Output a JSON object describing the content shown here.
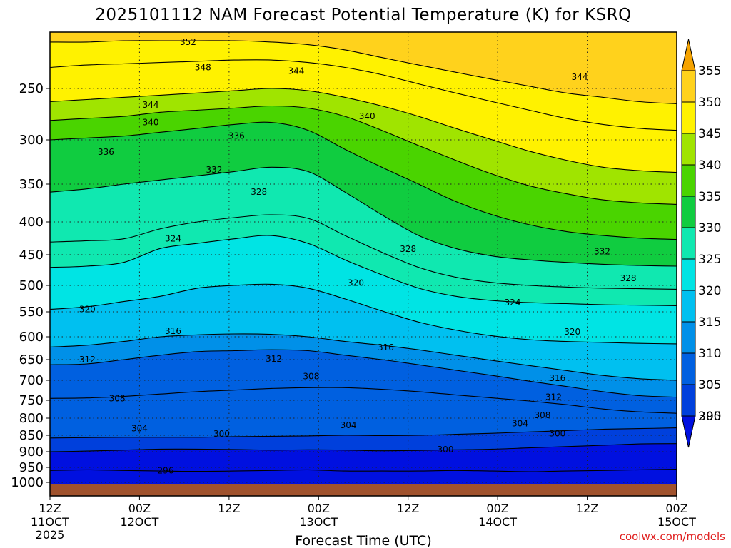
{
  "chart_data": {
    "type": "heatmap",
    "title": "2025101112 NAM Forecast Potential Temperature (K) for KSRQ",
    "xlabel": "Forecast Time (UTC)",
    "ylabel": "",
    "x_ticks": [
      {
        "hour": 0,
        "line1": "12Z",
        "line2": "11OCT",
        "line3": "2025"
      },
      {
        "hour": 12,
        "line1": "00Z",
        "line2": "12OCT",
        "line3": ""
      },
      {
        "hour": 24,
        "line1": "12Z",
        "line2": "",
        "line3": ""
      },
      {
        "hour": 36,
        "line1": "00Z",
        "line2": "13OCT",
        "line3": ""
      },
      {
        "hour": 48,
        "line1": "12Z",
        "line2": "",
        "line3": ""
      },
      {
        "hour": 60,
        "line1": "00Z",
        "line2": "14OCT",
        "line3": ""
      },
      {
        "hour": 72,
        "line1": "12Z",
        "line2": "",
        "line3": ""
      },
      {
        "hour": 84,
        "line1": "00Z",
        "line2": "15OCT",
        "line3": ""
      }
    ],
    "xlim_hours": [
      0,
      84
    ],
    "y_ticks_hpa": [
      250,
      300,
      350,
      400,
      450,
      500,
      550,
      600,
      650,
      700,
      750,
      800,
      850,
      900,
      950,
      1000
    ],
    "ylim_hpa": [
      200,
      1010
    ],
    "colorbar": {
      "levels": [
        355,
        350,
        345,
        340,
        335,
        330,
        325,
        320,
        315,
        310,
        305,
        300,
        295
      ],
      "colors": [
        "#f5a300",
        "#ffd21c",
        "#fff200",
        "#a0e400",
        "#4ad400",
        "#10cc40",
        "#10e8b0",
        "#00e4e4",
        "#00c0f0",
        "#0090e8",
        "#0060e0",
        "#0040dc",
        "#0010e0"
      ]
    },
    "contour_interval_K": 4,
    "isentropes": [
      {
        "theta": 296,
        "label_hour": 11,
        "surface_hpa": [
          960,
          958,
          960,
          962,
          963,
          962,
          960,
          958,
          962,
          962,
          962,
          960,
          962,
          964,
          962,
          960,
          958,
          956
        ]
      },
      {
        "theta": 300,
        "label_hour": 19,
        "surface_hpa": [
          900,
          898,
          895,
          892,
          892,
          893,
          895,
          894,
          895,
          897,
          896,
          894,
          892,
          888,
          884,
          880,
          876,
          875
        ]
      },
      {
        "theta": 304,
        "label_hour": 10,
        "surface_hpa": [
          858,
          857,
          856,
          856,
          856,
          854,
          853,
          852,
          850,
          851,
          850,
          847,
          844,
          840,
          836,
          832,
          830,
          828
        ]
      },
      {
        "theta": 308,
        "label_hour": 7,
        "surface_hpa": [
          745,
          744,
          740,
          734,
          728,
          724,
          720,
          718,
          718,
          722,
          728,
          736,
          744,
          752,
          762,
          774,
          782,
          786
        ]
      },
      {
        "theta": 312,
        "label_hour": 4,
        "surface_hpa": [
          662,
          660,
          650,
          640,
          632,
          630,
          628,
          630,
          640,
          650,
          662,
          675,
          688,
          702,
          715,
          728,
          738,
          742
        ]
      },
      {
        "theta": 316,
        "label_hour": 15,
        "surface_hpa": [
          622,
          618,
          610,
          600,
          596,
          594,
          595,
          600,
          610,
          618,
          628,
          640,
          652,
          664,
          676,
          688,
          696,
          700
        ]
      },
      {
        "theta": 320,
        "label_hour": 4,
        "surface_hpa": [
          545,
          540,
          530,
          520,
          505,
          500,
          498,
          505,
          525,
          548,
          570,
          586,
          598,
          606,
          610,
          612,
          614,
          615
        ]
      },
      {
        "theta": 324,
        "label_hour": 15,
        "surface_hpa": [
          470,
          468,
          462,
          440,
          432,
          425,
          420,
          432,
          458,
          482,
          505,
          520,
          528,
          532,
          534,
          536,
          537,
          538
        ]
      },
      {
        "theta": 328,
        "label_hour": 26,
        "surface_hpa": [
          430,
          428,
          425,
          410,
          400,
          394,
          390,
          395,
          420,
          446,
          470,
          486,
          495,
          500,
          503,
          505,
          506,
          507
        ]
      },
      {
        "theta": 332,
        "label_hour": 21,
        "surface_hpa": [
          360,
          356,
          350,
          345,
          340,
          335,
          330,
          335,
          360,
          390,
          420,
          440,
          452,
          458,
          462,
          465,
          467,
          468
        ]
      },
      {
        "theta": 336,
        "label_hour": 7,
        "surface_hpa": [
          300,
          298,
          296,
          292,
          288,
          284,
          282,
          290,
          310,
          330,
          350,
          372,
          390,
          404,
          414,
          420,
          424,
          426
        ]
      },
      {
        "theta": 340,
        "label_hour": 12,
        "surface_hpa": [
          280,
          278,
          276,
          272,
          270,
          268,
          266,
          268,
          276,
          290,
          306,
          322,
          338,
          352,
          362,
          370,
          374,
          376
        ]
      },
      {
        "theta": 344,
        "label_hour": 13,
        "surface_hpa": [
          262,
          260,
          258,
          256,
          254,
          252,
          250,
          252,
          258,
          266,
          276,
          288,
          300,
          312,
          322,
          330,
          334,
          336
        ]
      },
      {
        "theta": 348,
        "label_hour": 20,
        "surface_hpa": [
          232,
          230,
          229,
          228,
          227,
          226,
          226,
          228,
          232,
          238,
          246,
          254,
          262,
          270,
          278,
          284,
          288,
          290
        ]
      },
      {
        "theta": 352,
        "label_hour": 18,
        "surface_hpa": [
          212,
          212,
          211,
          211,
          211,
          211,
          212,
          214,
          218,
          224,
          230,
          236,
          242,
          248,
          254,
          258,
          262,
          264
        ]
      }
    ],
    "label_positions": [
      {
        "text": "352",
        "hour": 18.5,
        "hpa": 212
      },
      {
        "text": "348",
        "hour": 20.5,
        "hpa": 232
      },
      {
        "text": "344",
        "hour": 33,
        "hpa": 235
      },
      {
        "text": "344",
        "hour": 71,
        "hpa": 240
      },
      {
        "text": "344",
        "hour": 13.5,
        "hpa": 265
      },
      {
        "text": "340",
        "hour": 42.5,
        "hpa": 276
      },
      {
        "text": "340",
        "hour": 13.5,
        "hpa": 282
      },
      {
        "text": "336",
        "hour": 25,
        "hpa": 296
      },
      {
        "text": "336",
        "hour": 7.5,
        "hpa": 313
      },
      {
        "text": "332",
        "hour": 22,
        "hpa": 333
      },
      {
        "text": "328",
        "hour": 28,
        "hpa": 360
      },
      {
        "text": "324",
        "hour": 16.5,
        "hpa": 425
      },
      {
        "text": "328",
        "hour": 48,
        "hpa": 441
      },
      {
        "text": "332",
        "hour": 74,
        "hpa": 445
      },
      {
        "text": "328",
        "hour": 77.5,
        "hpa": 488
      },
      {
        "text": "320",
        "hour": 41,
        "hpa": 496
      },
      {
        "text": "324",
        "hour": 62,
        "hpa": 532
      },
      {
        "text": "320",
        "hour": 5,
        "hpa": 545
      },
      {
        "text": "316",
        "hour": 16.5,
        "hpa": 588
      },
      {
        "text": "320",
        "hour": 70,
        "hpa": 590
      },
      {
        "text": "316",
        "hour": 45,
        "hpa": 623
      },
      {
        "text": "312",
        "hour": 5,
        "hpa": 650
      },
      {
        "text": "312",
        "hour": 30,
        "hpa": 648
      },
      {
        "text": "308",
        "hour": 35,
        "hpa": 690
      },
      {
        "text": "316",
        "hour": 68,
        "hpa": 695
      },
      {
        "text": "308",
        "hour": 9,
        "hpa": 745
      },
      {
        "text": "312",
        "hour": 67.5,
        "hpa": 742
      },
      {
        "text": "308",
        "hour": 66,
        "hpa": 792
      },
      {
        "text": "304",
        "hour": 12,
        "hpa": 830
      },
      {
        "text": "304",
        "hour": 40,
        "hpa": 820
      },
      {
        "text": "304",
        "hour": 63,
        "hpa": 815
      },
      {
        "text": "300",
        "hour": 23,
        "hpa": 846
      },
      {
        "text": "300",
        "hour": 68,
        "hpa": 845
      },
      {
        "text": "300",
        "hour": 53,
        "hpa": 893
      },
      {
        "text": "296",
        "hour": 15.5,
        "hpa": 960
      }
    ]
  },
  "footer": {
    "credit": "coolwx.com/models"
  }
}
